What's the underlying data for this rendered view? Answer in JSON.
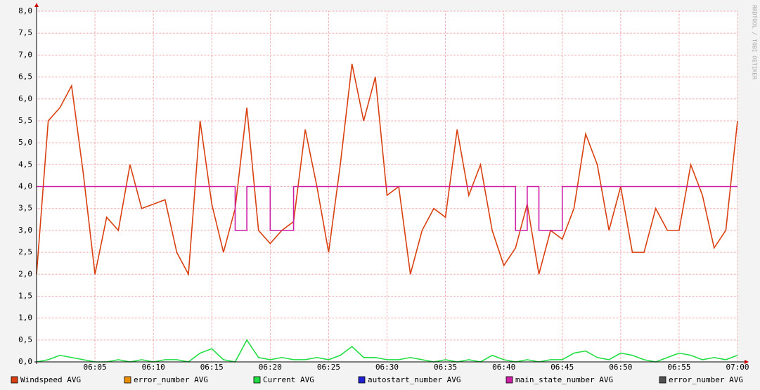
{
  "chart_data": {
    "type": "line",
    "watermark": "RRDTOOL / TOBI OETIKER",
    "x": [
      "06:00",
      "06:01",
      "06:02",
      "06:03",
      "06:04",
      "06:05",
      "06:06",
      "06:07",
      "06:08",
      "06:09",
      "06:10",
      "06:11",
      "06:12",
      "06:13",
      "06:14",
      "06:15",
      "06:16",
      "06:17",
      "06:18",
      "06:19",
      "06:20",
      "06:21",
      "06:22",
      "06:23",
      "06:24",
      "06:25",
      "06:26",
      "06:27",
      "06:28",
      "06:29",
      "06:30",
      "06:31",
      "06:32",
      "06:33",
      "06:34",
      "06:35",
      "06:36",
      "06:37",
      "06:38",
      "06:39",
      "06:40",
      "06:41",
      "06:42",
      "06:43",
      "06:44",
      "06:45",
      "06:46",
      "06:47",
      "06:48",
      "06:49",
      "06:50",
      "06:51",
      "06:52",
      "06:53",
      "06:54",
      "06:55",
      "06:56",
      "06:57",
      "06:58",
      "06:59",
      "07:00"
    ],
    "xlim": [
      "06:00",
      "07:00"
    ],
    "xticks": [
      "06:05",
      "06:10",
      "06:15",
      "06:20",
      "06:25",
      "06:30",
      "06:35",
      "06:40",
      "06:45",
      "06:50",
      "06:55",
      "07:00"
    ],
    "ylim": [
      0,
      8
    ],
    "yticks": [
      {
        "value": 0,
        "label": "0,0"
      },
      {
        "value": 0.5,
        "label": "0,5"
      },
      {
        "value": 1,
        "label": "1,0"
      },
      {
        "value": 1.5,
        "label": "1,5"
      },
      {
        "value": 2,
        "label": "2,0"
      },
      {
        "value": 2.5,
        "label": "2,5"
      },
      {
        "value": 3,
        "label": "3,0"
      },
      {
        "value": 3.5,
        "label": "3,5"
      },
      {
        "value": 4,
        "label": "4,0"
      },
      {
        "value": 4.5,
        "label": "4,5"
      },
      {
        "value": 5,
        "label": "5,0"
      },
      {
        "value": 5.5,
        "label": "5,5"
      },
      {
        "value": 6,
        "label": "6,0"
      },
      {
        "value": 6.5,
        "label": "6,5"
      },
      {
        "value": 7,
        "label": "7,0"
      },
      {
        "value": 7.5,
        "label": "7,5"
      },
      {
        "value": 8,
        "label": "8,0"
      }
    ],
    "grid": true,
    "series": [
      {
        "name": "Windspeed AVG",
        "color": "#d94010",
        "values": [
          2.0,
          5.5,
          5.8,
          6.3,
          4.3,
          2.0,
          3.3,
          3.0,
          4.5,
          3.5,
          3.6,
          3.7,
          2.5,
          2.0,
          5.5,
          3.6,
          2.5,
          3.5,
          5.8,
          3.0,
          2.7,
          3.0,
          3.2,
          5.3,
          4.0,
          2.5,
          4.5,
          6.8,
          5.5,
          6.5,
          3.8,
          4.0,
          2.0,
          3.0,
          3.5,
          3.3,
          5.3,
          3.8,
          4.5,
          3.0,
          2.2,
          2.6,
          3.6,
          2.0,
          3.0,
          2.8,
          3.5,
          5.2,
          4.5,
          3.0,
          4.0,
          2.5,
          2.5,
          3.5,
          3.0,
          3.0,
          4.5,
          3.8,
          2.6,
          3.0,
          5.5
        ]
      },
      {
        "name": "error_number AVG",
        "color": "#ea8f00",
        "values": [
          null,
          null,
          null,
          null,
          null,
          null,
          null,
          null,
          null,
          null,
          null,
          null,
          null,
          null,
          null,
          null,
          null,
          null,
          null,
          null,
          null,
          null,
          null,
          null,
          null,
          null,
          null,
          null,
          null,
          null,
          null,
          null,
          null,
          null,
          null,
          null,
          null,
          null,
          null,
          null,
          null,
          null,
          null,
          null,
          null,
          null,
          null,
          null,
          null,
          null,
          null,
          null,
          null,
          null,
          null,
          null,
          null,
          null,
          null,
          null,
          null
        ]
      },
      {
        "name": "Current AVG",
        "color": "#22dd44",
        "values": [
          0.0,
          0.05,
          0.15,
          0.1,
          0.05,
          0.0,
          0.0,
          0.05,
          0.0,
          0.05,
          0.0,
          0.05,
          0.05,
          0.0,
          0.2,
          0.3,
          0.05,
          0.0,
          0.5,
          0.1,
          0.05,
          0.1,
          0.05,
          0.05,
          0.1,
          0.05,
          0.15,
          0.35,
          0.1,
          0.1,
          0.05,
          0.05,
          0.1,
          0.05,
          0.0,
          0.05,
          0.0,
          0.05,
          0.0,
          0.15,
          0.05,
          0.0,
          0.05,
          0.0,
          0.05,
          0.05,
          0.2,
          0.25,
          0.1,
          0.05,
          0.2,
          0.15,
          0.05,
          0.0,
          0.1,
          0.2,
          0.15,
          0.05,
          0.1,
          0.05,
          0.15
        ]
      },
      {
        "name": "autostart_number AVG",
        "color": "#2020d0",
        "values": [
          null,
          null,
          null,
          null,
          null,
          null,
          null,
          null,
          null,
          null,
          null,
          null,
          null,
          null,
          null,
          null,
          null,
          null,
          null,
          null,
          null,
          null,
          null,
          null,
          null,
          null,
          null,
          null,
          null,
          null,
          null,
          null,
          null,
          null,
          null,
          null,
          null,
          null,
          null,
          null,
          null,
          null,
          null,
          null,
          null,
          null,
          null,
          null,
          null,
          null,
          null,
          null,
          null,
          null,
          null,
          null,
          null,
          null,
          null,
          null,
          null
        ]
      },
      {
        "name": "main_state_number AVG",
        "color": "#cc1fa6",
        "values": [
          4,
          4,
          4,
          4,
          4,
          4,
          4,
          4,
          4,
          4,
          4,
          4,
          4,
          4,
          4,
          4,
          4,
          3,
          4,
          4,
          3,
          3,
          4,
          4,
          4,
          4,
          4,
          4,
          4,
          4,
          4,
          4,
          4,
          4,
          4,
          4,
          4,
          4,
          4,
          4,
          4,
          3,
          4,
          3,
          3,
          4,
          4,
          4,
          4,
          4,
          4,
          4,
          4,
          4,
          4,
          4,
          4,
          4,
          4,
          4,
          4
        ]
      },
      {
        "name": "error_number AVG",
        "color": "#505050",
        "values": [
          null,
          null,
          null,
          null,
          null,
          null,
          null,
          null,
          null,
          null,
          null,
          null,
          null,
          null,
          null,
          null,
          null,
          null,
          null,
          null,
          null,
          null,
          null,
          null,
          null,
          null,
          null,
          null,
          null,
          null,
          null,
          null,
          null,
          null,
          null,
          null,
          null,
          null,
          null,
          null,
          null,
          null,
          null,
          null,
          null,
          null,
          null,
          null,
          null,
          null,
          null,
          null,
          null,
          null,
          null,
          null,
          null,
          null,
          null,
          null,
          null
        ]
      }
    ]
  }
}
